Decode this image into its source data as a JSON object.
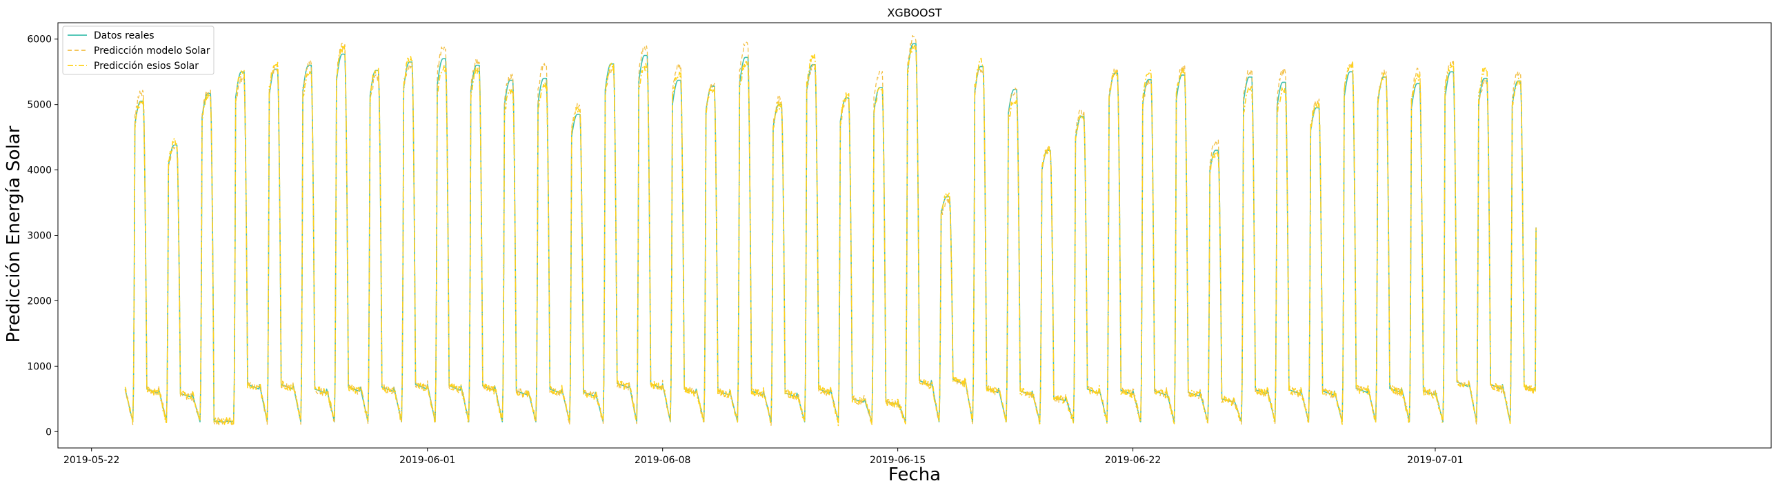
{
  "chart_data": {
    "type": "line",
    "title": "XGBOOST",
    "xlabel": "Fecha",
    "ylabel": "Predicción Energía Solar",
    "xlim": [
      "2019-05-21",
      "2019-07-11"
    ],
    "ylim": [
      -250,
      6250
    ],
    "x_ticks": [
      "2019-05-22",
      "2019-06-01",
      "2019-06-08",
      "2019-06-15",
      "2019-06-22",
      "2019-07-01"
    ],
    "y_ticks": [
      0,
      1000,
      2000,
      3000,
      4000,
      5000,
      6000
    ],
    "x_start": "2019-05-23",
    "days": [
      "2019-05-23",
      "2019-05-24",
      "2019-05-25",
      "2019-05-26",
      "2019-05-27",
      "2019-05-28",
      "2019-05-29",
      "2019-05-30",
      "2019-05-31",
      "2019-06-01",
      "2019-06-02",
      "2019-06-03",
      "2019-06-04",
      "2019-06-05",
      "2019-06-06",
      "2019-06-07",
      "2019-06-08",
      "2019-06-09",
      "2019-06-10",
      "2019-06-11",
      "2019-06-12",
      "2019-06-13",
      "2019-06-14",
      "2019-06-15",
      "2019-06-16",
      "2019-06-17",
      "2019-06-18",
      "2019-06-19",
      "2019-06-20",
      "2019-06-21",
      "2019-06-22",
      "2019-06-23",
      "2019-06-24",
      "2019-06-25",
      "2019-06-26",
      "2019-06-27",
      "2019-06-28",
      "2019-06-29",
      "2019-06-30",
      "2019-07-01",
      "2019-07-02",
      "2019-07-03"
    ],
    "daily_peak": [
      5050,
      4380,
      5170,
      5500,
      5540,
      5600,
      5770,
      5520,
      5650,
      5700,
      5600,
      5370,
      5400,
      4850,
      5620,
      5750,
      5370,
      5280,
      5720,
      5000,
      5610,
      5100,
      5260,
      5930,
      3590,
      5580,
      5230,
      4300,
      4820,
      5480,
      5380,
      5450,
      4300,
      5420,
      5340,
      4950,
      5500,
      5420,
      5320,
      5500,
      5400,
      5360
    ],
    "daily_floor": [
      650,
      580,
      160,
      720,
      720,
      650,
      680,
      680,
      720,
      700,
      700,
      620,
      650,
      600,
      740,
      730,
      650,
      620,
      620,
      590,
      650,
      500,
      460,
      780,
      800,
      660,
      620,
      520,
      650,
      630,
      620,
      600,
      500,
      640,
      640,
      620,
      660,
      660,
      620,
      760,
      720,
      700
    ],
    "series": [
      {
        "name": "Datos reales",
        "color": "#3dbfae",
        "style": "solid"
      },
      {
        "name": "Predicción modelo Solar",
        "color": "#f2bf44",
        "style": "dashed"
      },
      {
        "name": "Predicción esios Solar",
        "color": "#ffd21a",
        "style": "dashdot"
      }
    ],
    "legend_position": "top-left",
    "grid": false
  }
}
